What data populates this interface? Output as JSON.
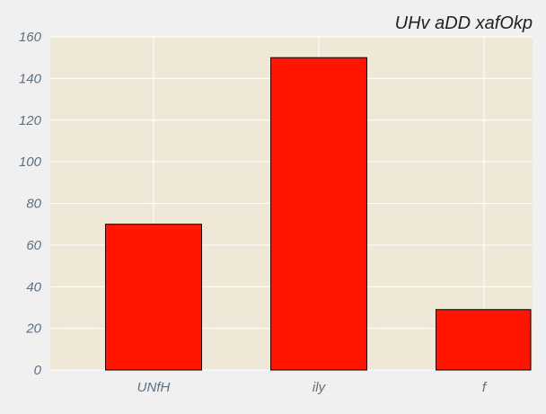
{
  "chart_data": {
    "type": "bar",
    "title": "UHv aDD xafOkp",
    "xlabel": "",
    "ylabel": "",
    "categories": [
      "UNfH",
      "ily",
      "f"
    ],
    "values": [
      70,
      150,
      29
    ],
    "ylim": [
      0,
      160
    ],
    "yticks": [
      0,
      20,
      40,
      60,
      80,
      100,
      120,
      140,
      160
    ],
    "grid": true,
    "colors": {
      "bar_fill": "#ff1500",
      "bar_edge": "#000000",
      "plot_bg": "#efe8d6",
      "page_bg": "#f0f0f0",
      "grid": "#ffffff",
      "tick_text": "#5e7081",
      "title_text": "#222222"
    }
  }
}
